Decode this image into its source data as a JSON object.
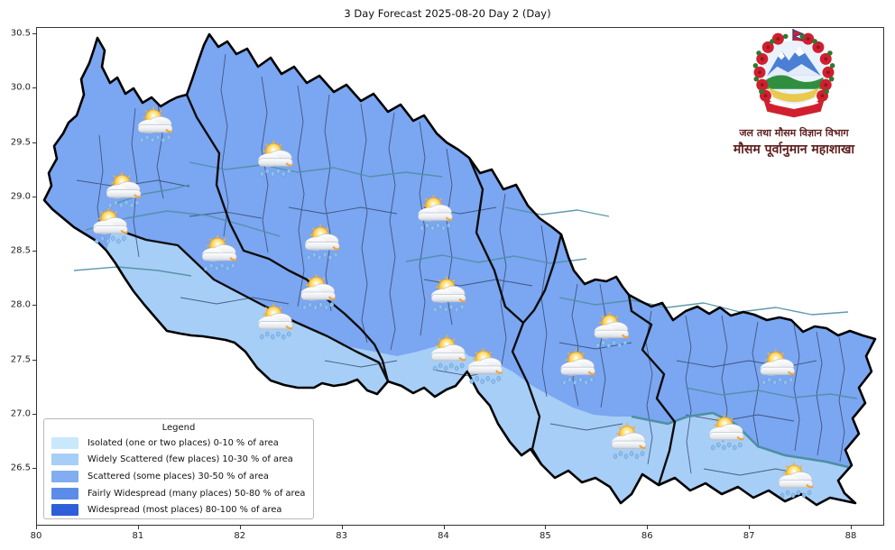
{
  "title": "3 Day Forecast 2025-08-20 Day 2 (Day)",
  "axes": {
    "x_ticks": [
      80,
      81,
      82,
      83,
      84,
      85,
      86,
      87,
      88
    ],
    "y_ticks": [
      26.5,
      27.0,
      27.5,
      28.0,
      28.5,
      29.0,
      29.5,
      30.0,
      30.5
    ],
    "x_label": "",
    "y_label": ""
  },
  "legend": {
    "title": "Legend",
    "items": [
      {
        "label": "Isolated (one or two places)  0-10 % of area",
        "color": "#c9e9fb"
      },
      {
        "label": "Widely Scattered (few places) 10-30 % of area",
        "color": "#a7cef6"
      },
      {
        "label": "Scattered (some places) 30-50  % of area",
        "color": "#82adf0"
      },
      {
        "label": "Fairly Widespread (many places) 50-80 % of area",
        "color": "#5c8cea"
      },
      {
        "label": "Widespread (most places) 80-100 % of area",
        "color": "#2e5ed8"
      }
    ]
  },
  "logo": {
    "line1": "जल तथा मौसम विज्ञान विभाग",
    "line2": "मौसम पूर्वानुमान महाशाखा"
  },
  "map_colors": {
    "scattered_fill": "#7ba6f1",
    "widely_scattered_fill": "#a7cef6",
    "province_border": "#0d0d0d",
    "district_border": "#2f4468",
    "river_line": "#4e8fa3"
  },
  "chart_data": {
    "type": "map",
    "title": "3 Day Forecast 2025-08-20 Day 2 (Day)",
    "region": "Nepal",
    "x_range": [
      80,
      88
    ],
    "y_range": [
      26.5,
      30.5
    ],
    "grid": false,
    "legend_position": "lower left",
    "classes": [
      {
        "name": "Isolated (one or two places)",
        "coverage": "0-10 % of area",
        "color": "#c9e9fb"
      },
      {
        "name": "Widely Scattered (few places)",
        "coverage": "10-30 % of area",
        "color": "#a7cef6"
      },
      {
        "name": "Scattered (some places)",
        "coverage": "30-50 % of area",
        "color": "#82adf0"
      },
      {
        "name": "Fairly Widespread (many places)",
        "coverage": "50-80 % of area",
        "color": "#5c8cea"
      },
      {
        "name": "Widespread (most places)",
        "coverage": "80-100 % of area",
        "color": "#2e5ed8"
      }
    ],
    "points": [
      {
        "lon": 81.17,
        "lat": 29.65,
        "icon": "sun-cloud-rain"
      },
      {
        "lon": 82.35,
        "lat": 29.34,
        "icon": "sun-cloud-rain"
      },
      {
        "lon": 80.86,
        "lat": 29.05,
        "icon": "sun-cloud-rain"
      },
      {
        "lon": 80.73,
        "lat": 28.72,
        "icon": "sun-cloud-rain"
      },
      {
        "lon": 81.8,
        "lat": 28.47,
        "icon": "sun-cloud-rain"
      },
      {
        "lon": 82.81,
        "lat": 28.57,
        "icon": "sun-cloud-rain"
      },
      {
        "lon": 83.92,
        "lat": 28.84,
        "icon": "sun-cloud-rain"
      },
      {
        "lon": 82.77,
        "lat": 28.11,
        "icon": "sun-cloud-rain"
      },
      {
        "lon": 82.35,
        "lat": 27.84,
        "icon": "sun-cloud-rain"
      },
      {
        "lon": 84.05,
        "lat": 28.09,
        "icon": "sun-cloud-rain"
      },
      {
        "lon": 85.65,
        "lat": 27.76,
        "icon": "sun-cloud-rain"
      },
      {
        "lon": 84.05,
        "lat": 27.55,
        "icon": "sun-cloud-rain"
      },
      {
        "lon": 84.41,
        "lat": 27.43,
        "icon": "sun-cloud-rain"
      },
      {
        "lon": 85.32,
        "lat": 27.42,
        "icon": "sun-cloud-rain"
      },
      {
        "lon": 87.28,
        "lat": 27.42,
        "icon": "sun-cloud-rain"
      },
      {
        "lon": 86.78,
        "lat": 26.82,
        "icon": "sun-cloud-rain"
      },
      {
        "lon": 85.82,
        "lat": 26.74,
        "icon": "sun-cloud-rain"
      },
      {
        "lon": 87.46,
        "lat": 26.38,
        "icon": "sun-cloud-rain"
      }
    ]
  }
}
